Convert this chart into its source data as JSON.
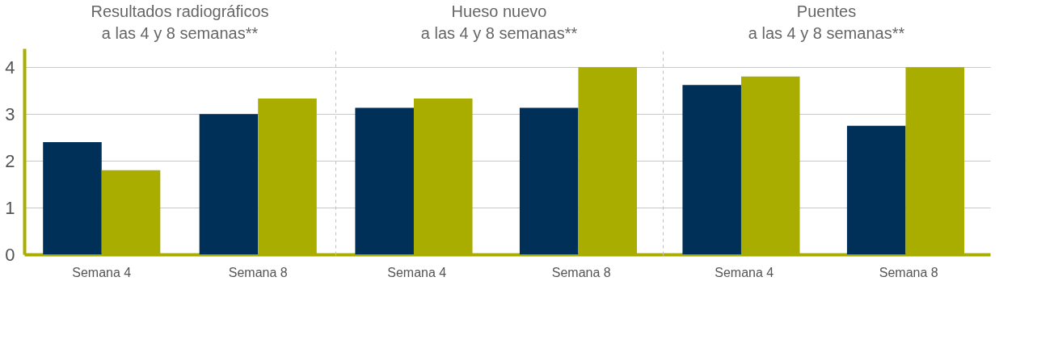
{
  "chart_data": [
    {
      "type": "bar",
      "title": "Resultados radiográficos\na las 4 y 8 semanas**",
      "categories": [
        "Semana 4",
        "Semana 8"
      ],
      "series": [
        {
          "color": "#003057",
          "values": [
            2.4,
            3.0
          ]
        },
        {
          "color": "#a8ad00",
          "values": [
            1.8,
            3.33
          ]
        }
      ],
      "ylim": [
        0,
        4.4
      ],
      "yticks": [
        0,
        1,
        2,
        3,
        4
      ],
      "grid": "y"
    },
    {
      "type": "bar",
      "title": "Hueso nuevo\na las 4 y 8 semanas**",
      "categories": [
        "Semana 4",
        "Semana 8"
      ],
      "series": [
        {
          "color": "#003057",
          "values": [
            3.13,
            3.13
          ]
        },
        {
          "color": "#a8ad00",
          "values": [
            3.33,
            4.0
          ]
        }
      ],
      "ylim": [
        0,
        4.4
      ],
      "yticks": [
        0,
        1,
        2,
        3,
        4
      ],
      "grid": "y",
      "tick_labels": "x"
    },
    {
      "type": "bar",
      "title": "Puentes\na las 4 y 8 semanas**",
      "categories": [
        "Semana 4",
        "Semana 8"
      ],
      "series": [
        {
          "color": "#003057",
          "values": [
            3.62,
            2.75
          ]
        },
        {
          "color": "#a8ad00",
          "values": [
            3.8,
            4.0
          ]
        }
      ],
      "ylim": [
        0,
        4.4
      ],
      "yticks": [
        0,
        1,
        2,
        3,
        4
      ],
      "grid": "y",
      "tick_labels": "x"
    }
  ]
}
